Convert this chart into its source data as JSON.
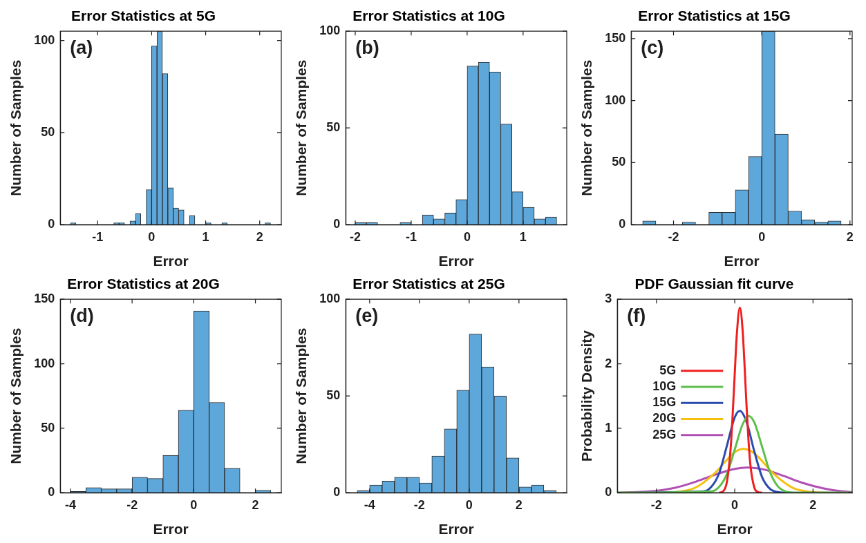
{
  "chart_data": [
    {
      "type": "histogram",
      "title": "Error Statistics at 5G",
      "xlabel": "Error",
      "ylabel": "Number of Samples",
      "annotations": [
        "(a)"
      ],
      "color": "#5ea7da",
      "bins": [
        -1.5,
        -1.4,
        -1.3,
        -1.2,
        -1.1,
        -1.0,
        -0.9,
        -0.8,
        -0.7,
        -0.6,
        -0.5,
        -0.4,
        -0.3,
        -0.2,
        -0.1,
        0,
        0.1,
        0.2,
        0.3,
        0.4,
        0.5,
        0.6,
        0.7,
        0.8,
        0.9,
        1.0,
        1.1,
        1.2,
        1.3,
        1.4,
        1.5,
        1.6,
        1.7,
        1.8,
        1.9,
        2.0,
        2.1,
        2.2
      ],
      "values": [
        1,
        0,
        0,
        0,
        0,
        0,
        0,
        0,
        1,
        1,
        0,
        2,
        6,
        0,
        19,
        97,
        105,
        82,
        20,
        9,
        8,
        0,
        5,
        0,
        0,
        1,
        0,
        0,
        1,
        0,
        0,
        0,
        0,
        0,
        0,
        0,
        1
      ],
      "xlim": [
        -1.69,
        2.4
      ],
      "xticks": [
        -1,
        0,
        1,
        2
      ],
      "ylim": [
        0,
        105
      ],
      "yticks": [
        0,
        50,
        100
      ]
    },
    {
      "type": "histogram",
      "title": "Error Statistics at 10G",
      "xlabel": "Error",
      "ylabel": "Number of Samples",
      "annotations": [
        "(b)"
      ],
      "color": "#5ea7da",
      "bins": [
        -2.0,
        -1.8,
        -1.6,
        -1.4,
        -1.2,
        -1.0,
        -0.8,
        -0.6,
        -0.4,
        -0.2,
        0,
        0.2,
        0.4,
        0.6,
        0.8,
        1.0,
        1.2,
        1.4,
        1.6
      ],
      "values": [
        1,
        1,
        0,
        0,
        1,
        0,
        5,
        3,
        6,
        13,
        82,
        84,
        79,
        52,
        17,
        9,
        3,
        4
      ],
      "xlim": [
        -2.17,
        1.78
      ],
      "xticks": [
        -2,
        -1,
        0,
        1
      ],
      "ylim": [
        0,
        100
      ],
      "yticks": [
        0,
        50,
        100
      ]
    },
    {
      "type": "histogram",
      "title": "Error Statistics at 15G",
      "xlabel": "Error",
      "ylabel": "Number of Samples",
      "annotations": [
        "(c)"
      ],
      "color": "#5ea7da",
      "bins": [
        -2.7,
        -2.4,
        -2.1,
        -1.8,
        -1.5,
        -1.2,
        -0.9,
        -0.6,
        -0.3,
        0,
        0.3,
        0.6,
        0.9,
        1.2,
        1.5,
        1.8
      ],
      "values": [
        3,
        0,
        0,
        2,
        0,
        10,
        10,
        28,
        55,
        156,
        73,
        11,
        4,
        2,
        3
      ],
      "xlim": [
        -2.96,
        2.05
      ],
      "xticks": [
        -2,
        0,
        2
      ],
      "ylim": [
        0,
        156
      ],
      "yticks": [
        0,
        50,
        100,
        150
      ]
    },
    {
      "type": "histogram",
      "title": "Error Statistics at 20G",
      "xlabel": "Error",
      "ylabel": "Number of Samples",
      "annotations": [
        "(d)"
      ],
      "color": "#5ea7da",
      "bins": [
        -4,
        -3.5,
        -3,
        -2.5,
        -2,
        -1.5,
        -1,
        -0.5,
        0,
        0.5,
        1,
        1.5,
        2,
        2.5
      ],
      "values": [
        1,
        4,
        3,
        3,
        12,
        11,
        29,
        64,
        141,
        70,
        19,
        0,
        2
      ],
      "xlim": [
        -4.33,
        2.84
      ],
      "xticks": [
        -4,
        -2,
        0,
        2
      ],
      "ylim": [
        0,
        150
      ],
      "yticks": [
        0,
        50,
        100,
        150
      ]
    },
    {
      "type": "histogram",
      "title": "Error Statistics at 25G",
      "xlabel": "Error",
      "ylabel": "Number of Samples",
      "annotations": [
        "(e)"
      ],
      "color": "#5ea7da",
      "bins": [
        -4.5,
        -4,
        -3.5,
        -3,
        -2.5,
        -2,
        -1.5,
        -1,
        -0.5,
        0,
        0.5,
        1,
        1.5,
        2,
        2.5,
        3,
        3.5
      ],
      "values": [
        1,
        4,
        6,
        8,
        8,
        5,
        19,
        33,
        53,
        82,
        65,
        50,
        18,
        3,
        4,
        1
      ],
      "xlim": [
        -4.96,
        3.92
      ],
      "xticks": [
        -4,
        -2,
        0,
        2
      ],
      "ylim": [
        0,
        100
      ],
      "yticks": [
        0,
        50,
        100
      ]
    },
    {
      "type": "line",
      "title": "PDF Gaussian fit curve",
      "xlabel": "Error",
      "ylabel": "Probability Density",
      "annotations": [
        "(f)"
      ],
      "legend": "left",
      "marker": "none",
      "xlim": [
        -3,
        3
      ],
      "xticks": [
        -2,
        0,
        2
      ],
      "ylim": [
        0,
        3
      ],
      "yticks": [
        0,
        1,
        2,
        3
      ],
      "series": [
        {
          "name": "5G",
          "color": "#f01e1e",
          "x": [
            -0.4,
            -0.3,
            -0.2,
            -0.1,
            -0.05,
            0,
            0.05,
            0.13,
            0.2,
            0.25,
            0.3,
            0.35,
            0.4,
            0.5,
            0.6,
            0.7
          ],
          "values": [
            0,
            0.02,
            0.17,
            0.73,
            1.25,
            1.85,
            2.43,
            2.87,
            2.53,
            1.98,
            1.36,
            0.82,
            0.43,
            0.08,
            0.01,
            0
          ]
        },
        {
          "name": "10G",
          "color": "#5cbf4a",
          "x": [
            -3,
            -0.6,
            -0.4,
            -0.2,
            0,
            0.2,
            0.36,
            0.5,
            0.7,
            0.9,
            1.1,
            1.3,
            1.6,
            3
          ],
          "values": [
            0,
            0.02,
            0.09,
            0.29,
            0.67,
            1.06,
            1.19,
            1.09,
            0.71,
            0.32,
            0.1,
            0.02,
            0,
            0
          ]
        },
        {
          "name": "15G",
          "color": "#2a4bb0",
          "x": [
            -3,
            -0.8,
            -0.6,
            -0.4,
            -0.2,
            0,
            0.13,
            0.3,
            0.5,
            0.7,
            0.9,
            1.1,
            1.4,
            3
          ],
          "values": [
            0,
            0.02,
            0.09,
            0.3,
            0.73,
            1.17,
            1.27,
            1.1,
            0.64,
            0.24,
            0.06,
            0.01,
            0,
            0
          ]
        },
        {
          "name": "20G",
          "color": "#f5c010",
          "x": [
            -3,
            -2,
            -1.5,
            -1,
            -0.5,
            0,
            0.23,
            0.5,
            1,
            1.5,
            2,
            2.5,
            3
          ],
          "values": [
            0,
            0,
            0.01,
            0.08,
            0.31,
            0.63,
            0.68,
            0.61,
            0.29,
            0.07,
            0.01,
            0,
            0
          ]
        },
        {
          "name": "25G",
          "color": "#b04fb4",
          "x": [
            -3,
            -2.5,
            -2,
            -1.5,
            -1,
            -0.5,
            0,
            0.33,
            0.75,
            1.25,
            1.75,
            2.25,
            2.75,
            3
          ],
          "values": [
            0,
            0.01,
            0.03,
            0.08,
            0.17,
            0.28,
            0.37,
            0.39,
            0.36,
            0.26,
            0.15,
            0.07,
            0.02,
            0.01
          ]
        }
      ]
    }
  ]
}
